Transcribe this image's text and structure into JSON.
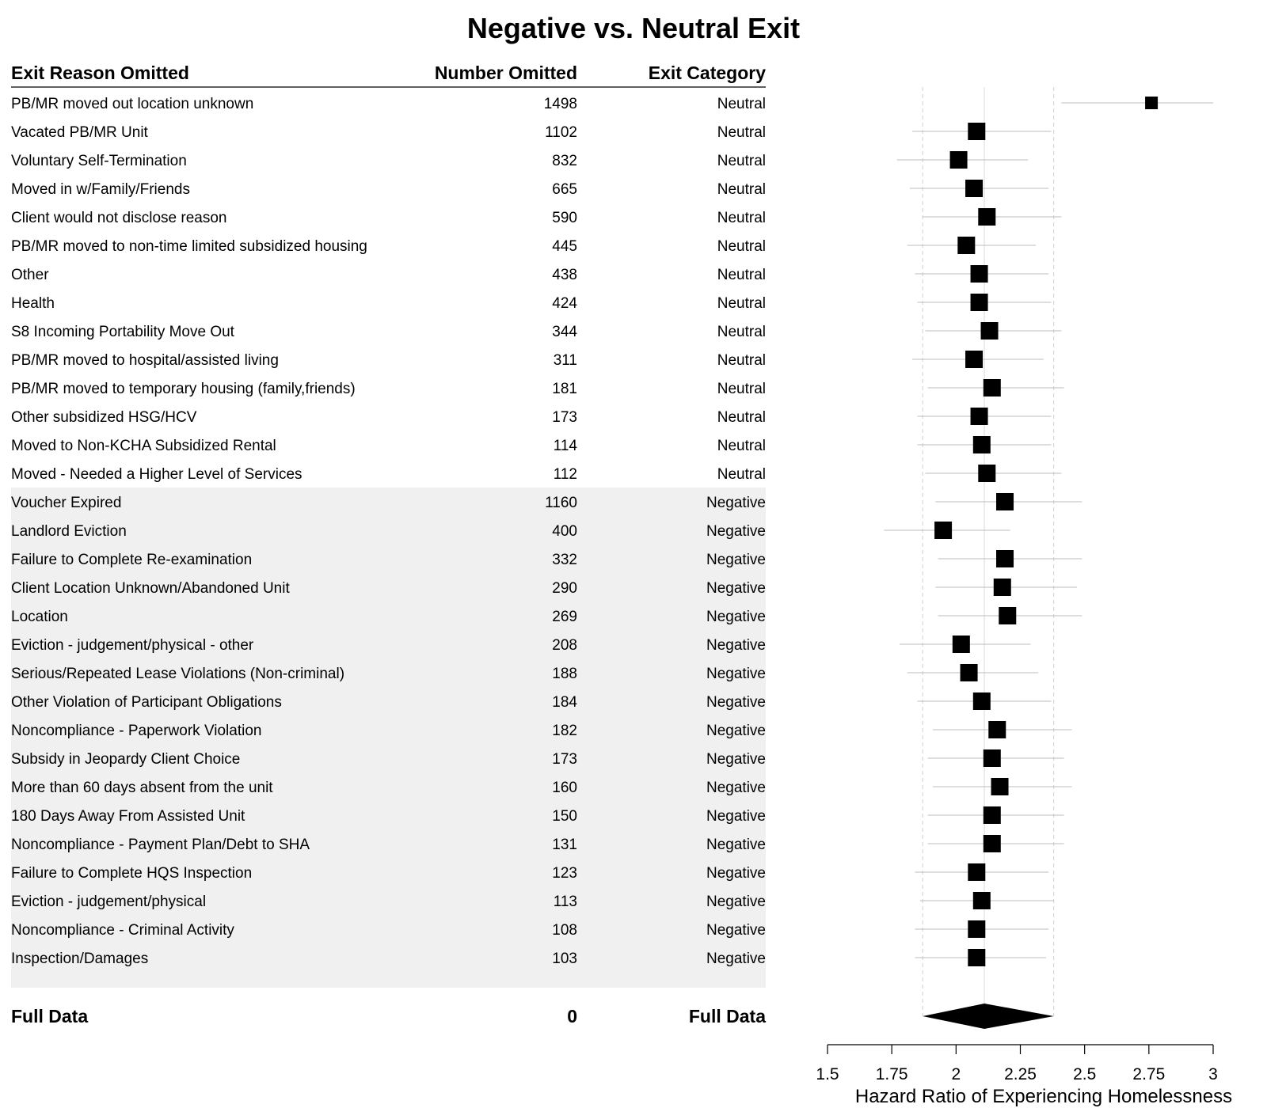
{
  "chart_data": {
    "type": "forest",
    "title": "Negative vs. Neutral Exit",
    "columns": [
      "Exit Reason Omitted",
      "Number Omitted",
      "Exit Category"
    ],
    "xlabel": "Hazard Ratio of Experiencing Homelessness",
    "xlim": [
      1.5,
      3
    ],
    "xticks": [
      1.5,
      1.75,
      2,
      2.25,
      2.5,
      2.75,
      3
    ],
    "xtick_labels": [
      "1.5",
      "1.75",
      "2",
      "2.25",
      "2.5",
      "2.75",
      "3"
    ],
    "reference_lines": [
      1.87,
      2.11,
      2.38
    ],
    "rows": [
      {
        "reason": "PB/MR moved out location unknown",
        "number": "1498",
        "category": "Neutral",
        "hr": 2.76,
        "lo": 2.41,
        "hi": 3.17
      },
      {
        "reason": "Vacated PB/MR Unit",
        "number": "1102",
        "category": "Neutral",
        "hr": 2.08,
        "lo": 1.83,
        "hi": 2.37
      },
      {
        "reason": "Voluntary Self-Termination",
        "number": "832",
        "category": "Neutral",
        "hr": 2.01,
        "lo": 1.77,
        "hi": 2.28
      },
      {
        "reason": "Moved in w/Family/Friends",
        "number": "665",
        "category": "Neutral",
        "hr": 2.07,
        "lo": 1.82,
        "hi": 2.36
      },
      {
        "reason": "Client would not disclose reason",
        "number": "590",
        "category": "Neutral",
        "hr": 2.12,
        "lo": 1.87,
        "hi": 2.41
      },
      {
        "reason": "PB/MR moved to non-time limited subsidized housing",
        "number": "445",
        "category": "Neutral",
        "hr": 2.04,
        "lo": 1.81,
        "hi": 2.31
      },
      {
        "reason": "Other",
        "number": "438",
        "category": "Neutral",
        "hr": 2.09,
        "lo": 1.84,
        "hi": 2.36
      },
      {
        "reason": "Health",
        "number": "424",
        "category": "Neutral",
        "hr": 2.09,
        "lo": 1.85,
        "hi": 2.37
      },
      {
        "reason": "S8 Incoming Portability Move Out",
        "number": "344",
        "category": "Neutral",
        "hr": 2.13,
        "lo": 1.88,
        "hi": 2.41
      },
      {
        "reason": "PB/MR moved to hospital/assisted living",
        "number": "311",
        "category": "Neutral",
        "hr": 2.07,
        "lo": 1.83,
        "hi": 2.34
      },
      {
        "reason": "PB/MR moved to temporary housing (family,friends)",
        "number": "181",
        "category": "Neutral",
        "hr": 2.14,
        "lo": 1.89,
        "hi": 2.42
      },
      {
        "reason": "Other subsidized HSG/HCV",
        "number": "173",
        "category": "Neutral",
        "hr": 2.09,
        "lo": 1.85,
        "hi": 2.37
      },
      {
        "reason": "Moved to Non-KCHA Subsidized Rental",
        "number": "114",
        "category": "Neutral",
        "hr": 2.1,
        "lo": 1.85,
        "hi": 2.37
      },
      {
        "reason": "Moved - Needed a Higher Level of Services",
        "number": "112",
        "category": "Neutral",
        "hr": 2.12,
        "lo": 1.88,
        "hi": 2.41
      },
      {
        "reason": "Voucher Expired",
        "number": "1160",
        "category": "Negative",
        "hr": 2.19,
        "lo": 1.92,
        "hi": 2.49
      },
      {
        "reason": "Landlord Eviction",
        "number": "400",
        "category": "Negative",
        "hr": 1.95,
        "lo": 1.72,
        "hi": 2.21
      },
      {
        "reason": "Failure to Complete Re-examination",
        "number": "332",
        "category": "Negative",
        "hr": 2.19,
        "lo": 1.93,
        "hi": 2.49
      },
      {
        "reason": "Client Location Unknown/Abandoned Unit",
        "number": "290",
        "category": "Negative",
        "hr": 2.18,
        "lo": 1.92,
        "hi": 2.47
      },
      {
        "reason": "Location",
        "number": "269",
        "category": "Negative",
        "hr": 2.2,
        "lo": 1.93,
        "hi": 2.49
      },
      {
        "reason": "Eviction - judgement/physical - other",
        "number": "208",
        "category": "Negative",
        "hr": 2.02,
        "lo": 1.78,
        "hi": 2.29
      },
      {
        "reason": "Serious/Repeated Lease Violations (Non-criminal)",
        "number": "188",
        "category": "Negative",
        "hr": 2.05,
        "lo": 1.81,
        "hi": 2.32
      },
      {
        "reason": "Other Violation of Participant Obligations",
        "number": "184",
        "category": "Negative",
        "hr": 2.1,
        "lo": 1.85,
        "hi": 2.37
      },
      {
        "reason": "Noncompliance - Paperwork Violation",
        "number": "182",
        "category": "Negative",
        "hr": 2.16,
        "lo": 1.91,
        "hi": 2.45
      },
      {
        "reason": "Subsidy in Jeopardy Client Choice",
        "number": "173",
        "category": "Negative",
        "hr": 2.14,
        "lo": 1.89,
        "hi": 2.42
      },
      {
        "reason": "More than 60 days absent from the unit",
        "number": "160",
        "category": "Negative",
        "hr": 2.17,
        "lo": 1.91,
        "hi": 2.45
      },
      {
        "reason": "180 Days Away From Assisted Unit",
        "number": "150",
        "category": "Negative",
        "hr": 2.14,
        "lo": 1.89,
        "hi": 2.42
      },
      {
        "reason": "Noncompliance - Payment Plan/Debt to SHA",
        "number": "131",
        "category": "Negative",
        "hr": 2.14,
        "lo": 1.89,
        "hi": 2.42
      },
      {
        "reason": "Failure to Complete HQS Inspection",
        "number": "123",
        "category": "Negative",
        "hr": 2.08,
        "lo": 1.84,
        "hi": 2.36
      },
      {
        "reason": "Eviction - judgement/physical",
        "number": "113",
        "category": "Negative",
        "hr": 2.1,
        "lo": 1.86,
        "hi": 2.38
      },
      {
        "reason": "Noncompliance - Criminal Activity",
        "number": "108",
        "category": "Negative",
        "hr": 2.08,
        "lo": 1.84,
        "hi": 2.36
      },
      {
        "reason": "Inspection/Damages",
        "number": "103",
        "category": "Negative",
        "hr": 2.08,
        "lo": 1.84,
        "hi": 2.35
      }
    ],
    "summary": {
      "reason": "Full Data",
      "number": "0",
      "category": "Full Data",
      "hr": 2.11,
      "lo": 1.87,
      "hi": 2.38
    }
  }
}
